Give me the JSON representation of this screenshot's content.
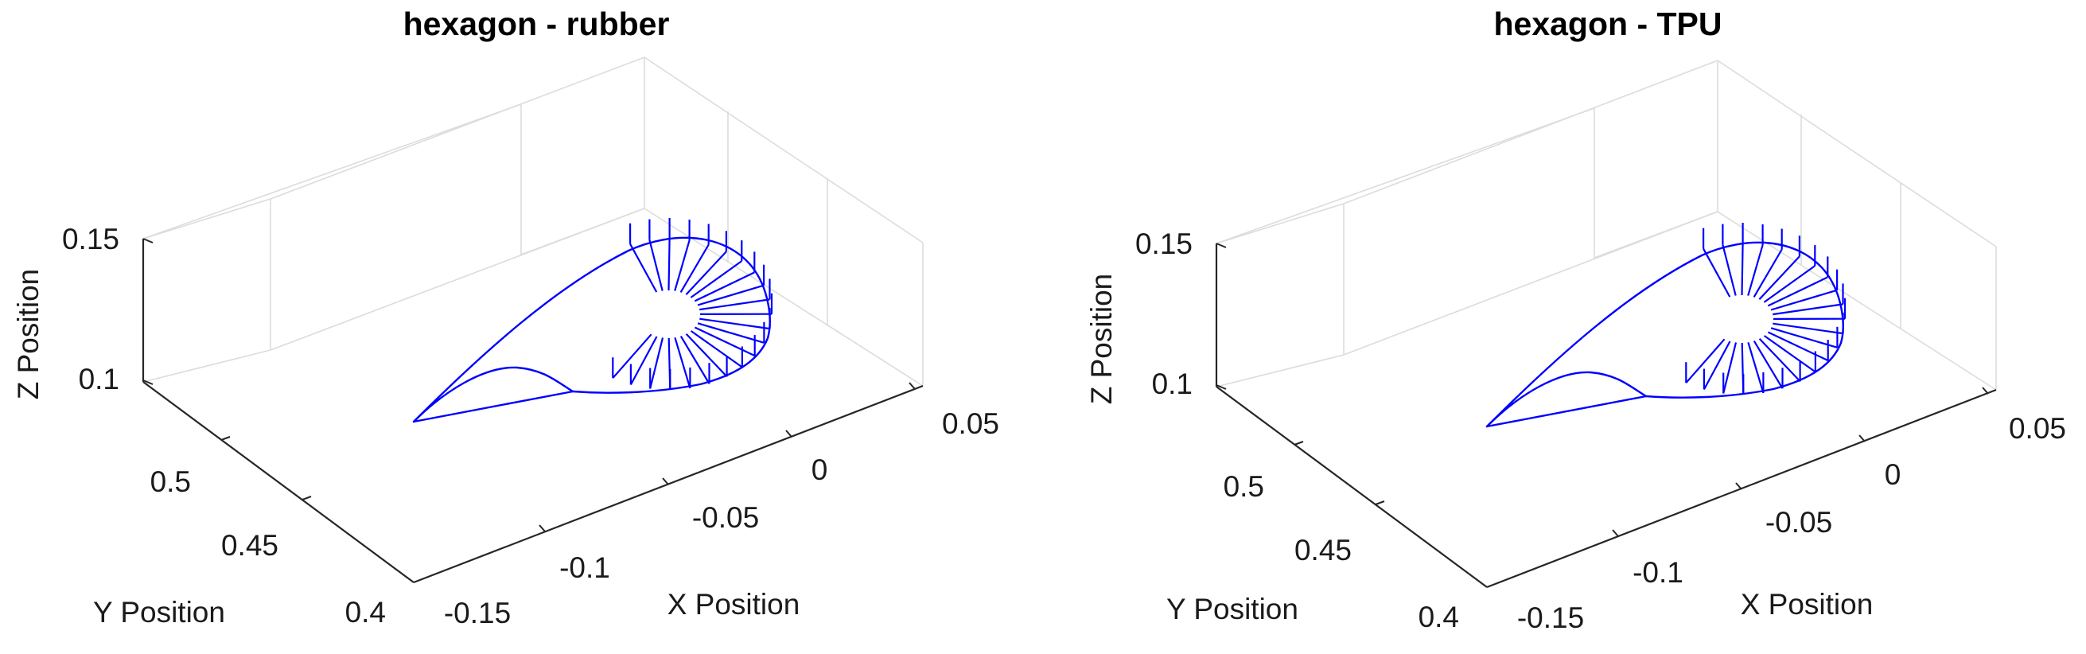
{
  "chart_data": [
    {
      "type": "line3d",
      "title": "hexagon - rubber",
      "xlabel": "X Position",
      "ylabel": "Y Position",
      "zlabel": "Z Position",
      "xlim": [
        -0.17,
        0.07
      ],
      "ylim": [
        0.38,
        0.53
      ],
      "zlim": [
        0.09,
        0.16
      ],
      "xticks": [
        "-0.15",
        "-0.1",
        "-0.05",
        "0",
        "0.05"
      ],
      "yticks": [
        "0.4",
        "0.45",
        "0.5"
      ],
      "zticks": [
        "0.1",
        "0.15"
      ],
      "grid": true,
      "color": "#0000ff"
    },
    {
      "type": "line3d",
      "title": "hexagon - TPU",
      "xlabel": "X Position",
      "ylabel": "Y Position",
      "zlabel": "Z Position",
      "xlim": [
        -0.17,
        0.07
      ],
      "ylim": [
        0.38,
        0.53
      ],
      "zlim": [
        0.09,
        0.16
      ],
      "xticks": [
        "-0.15",
        "-0.1",
        "-0.05",
        "0",
        "0.05"
      ],
      "yticks": [
        "0.4",
        "0.45",
        "0.5"
      ],
      "zticks": [
        "0.1",
        "0.15"
      ],
      "grid": true,
      "color": "#0000ff"
    }
  ]
}
